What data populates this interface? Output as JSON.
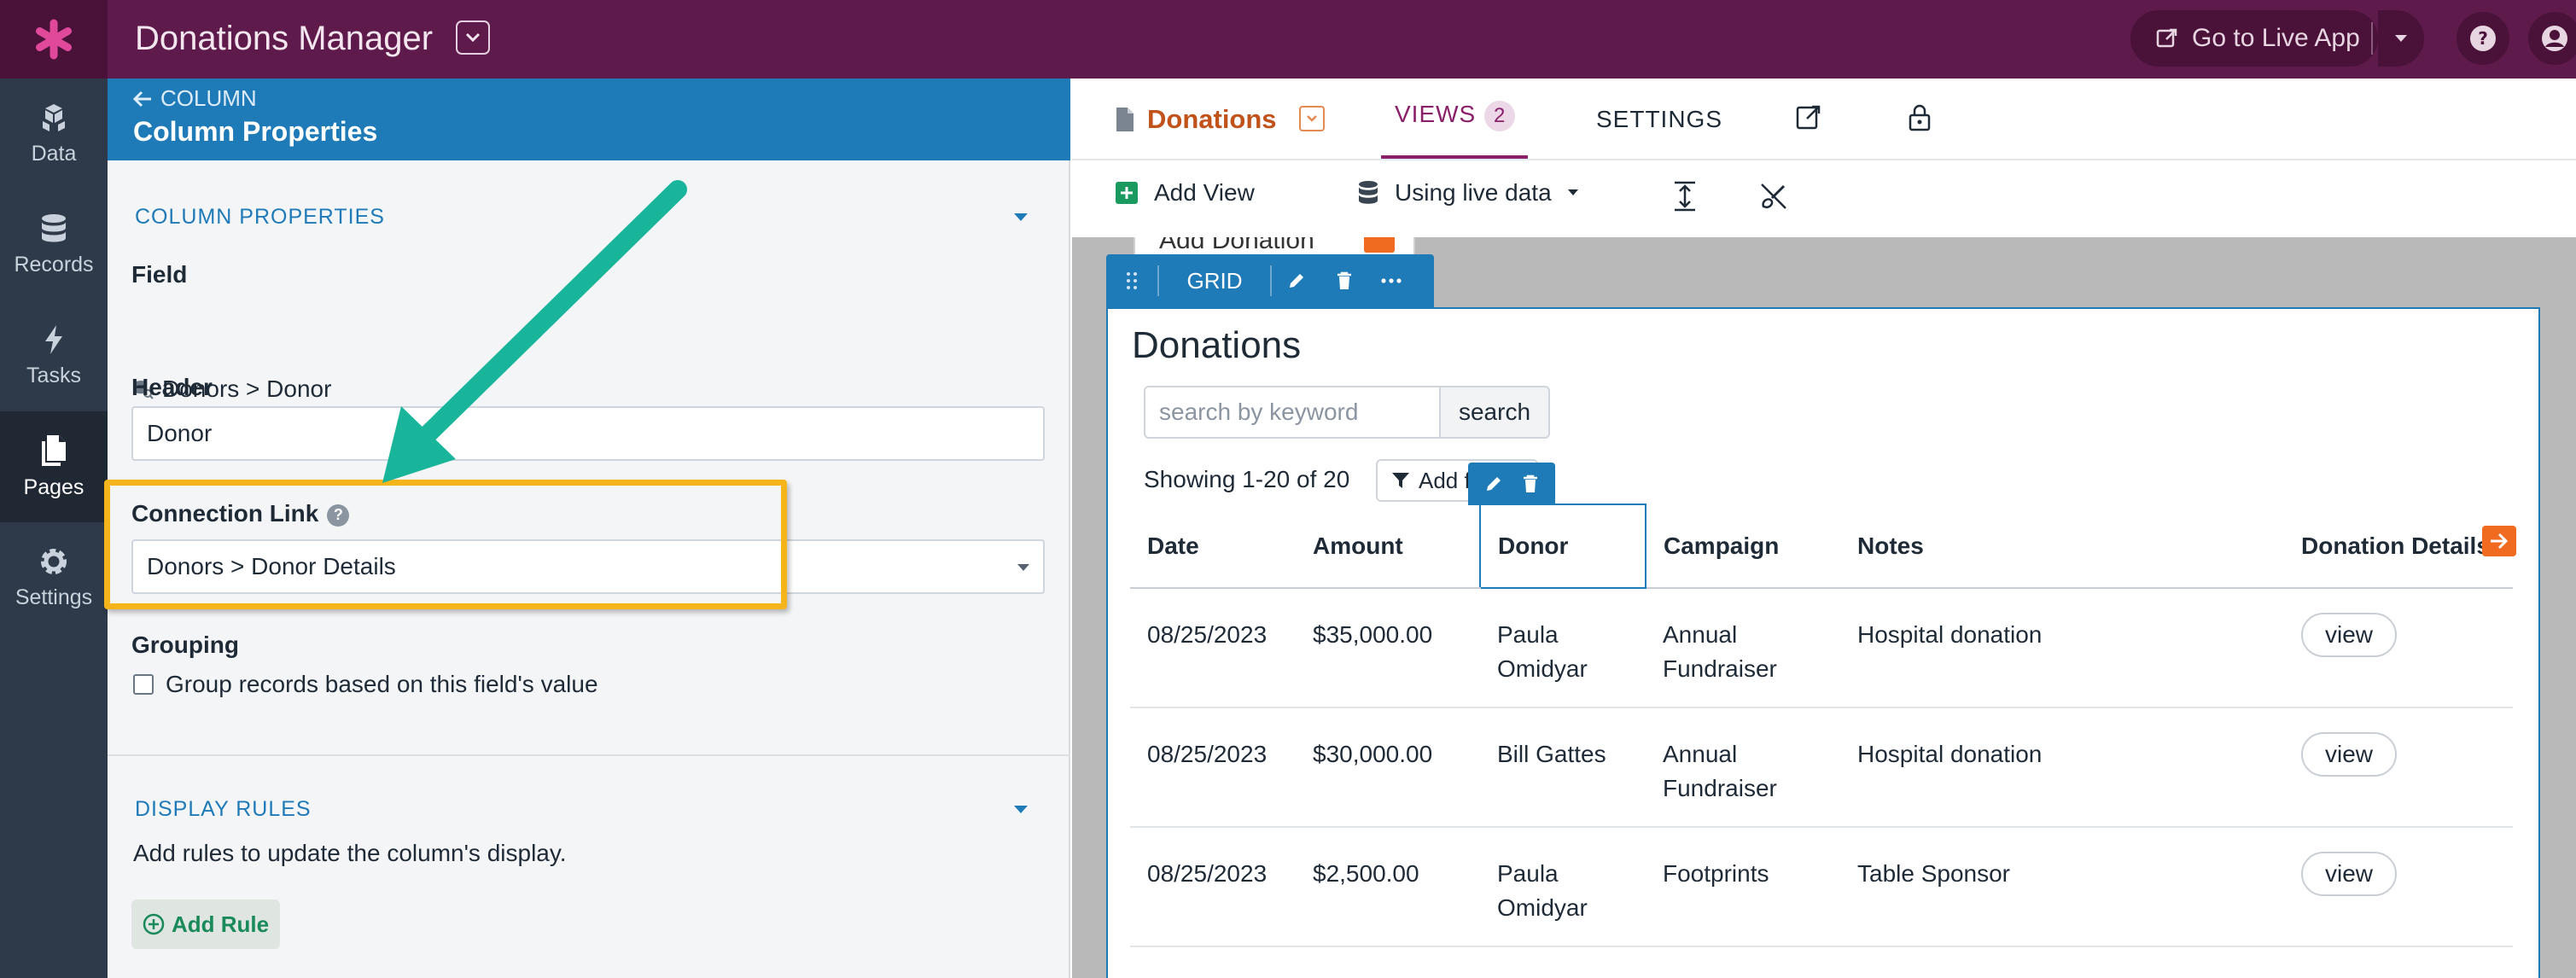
{
  "app": {
    "title": "Donations Manager",
    "live_app_label": "Go to Live App"
  },
  "nav": [
    {
      "label": "Data",
      "icon": "data-icon"
    },
    {
      "label": "Records",
      "icon": "records-icon"
    },
    {
      "label": "Tasks",
      "icon": "tasks-icon"
    },
    {
      "label": "Pages",
      "icon": "pages-icon",
      "active": true
    },
    {
      "label": "Settings",
      "icon": "settings-icon"
    }
  ],
  "column_panel": {
    "back_label": "COLUMN",
    "title": "Column Properties",
    "section_properties": "COLUMN PROPERTIES",
    "field_label": "Field",
    "field_value": "Donors > Donor",
    "header_label": "Header",
    "header_value": "Donor",
    "connection_label": "Connection Link",
    "connection_value": "Donors > Donor Details",
    "grouping_label": "Grouping",
    "grouping_checkbox": "Group records based on this field's value",
    "section_display": "DISPLAY RULES",
    "display_text": "Add rules to update the column's display.",
    "add_rule": "Add Rule"
  },
  "page": {
    "name": "Donations",
    "tabs": {
      "views": "VIEWS",
      "views_count": "2",
      "settings": "SETTINGS"
    },
    "toolbar": {
      "add_view": "Add View",
      "live_data": "Using live data"
    }
  },
  "canvas": {
    "add_donation": "Add Donation",
    "grid_label": "GRID",
    "view_title": "Donations",
    "search_placeholder": "search by keyword",
    "search_button": "search",
    "showing": "Showing 1-20 of 20",
    "add_filter": "Add fi",
    "columns": [
      "Date",
      "Amount",
      "Donor",
      "Campaign",
      "Notes",
      "Donation Details"
    ],
    "rows": [
      {
        "date": "08/25/2023",
        "amount": "$35,000.00",
        "donor": "Paula Omidyar",
        "campaign": "Annual Fundraiser",
        "notes": "Hospital donation",
        "details": "view"
      },
      {
        "date": "08/25/2023",
        "amount": "$30,000.00",
        "donor": "Bill Gattes",
        "campaign": "Annual Fundraiser",
        "notes": "Hospital donation",
        "details": "view"
      },
      {
        "date": "08/25/2023",
        "amount": "$2,500.00",
        "donor": "Paula Omidyar",
        "campaign": "Footprints",
        "notes": "Table Sponsor",
        "details": "view"
      }
    ]
  },
  "colors": {
    "topbar": "#5d1a4b",
    "accent_blue": "#1f7ab8",
    "highlight": "#f4b41a",
    "annotation_arrow": "#18b59b"
  }
}
